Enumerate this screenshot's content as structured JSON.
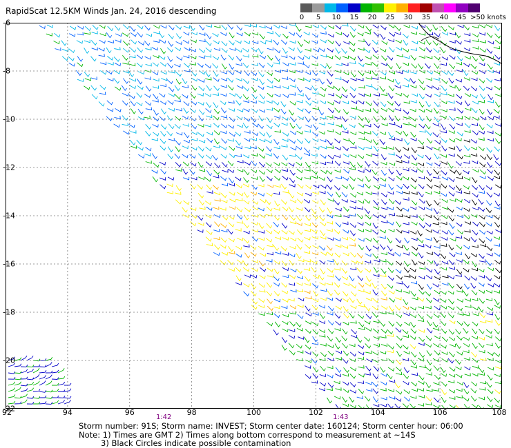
{
  "title": "RapidScat 12.5KM Winds Jan. 24, 2016 descending",
  "legend": {
    "labels": [
      "0",
      "5",
      "10",
      "15",
      "20",
      "25",
      "30",
      "35",
      "40",
      "45",
      ">50 knots"
    ],
    "colors": [
      "#5a5a5a",
      "#9a9a9a",
      "#00b8e8",
      "#0060ff",
      "#0000c8",
      "#00b400",
      "#30c000",
      "#fff000",
      "#ffb000",
      "#ff2020",
      "#a00000",
      "#c050b0",
      "#ff00ff",
      "#9000c0",
      "#500070"
    ]
  },
  "map": {
    "x_ticks": [
      "92",
      "94",
      "96",
      "98",
      "100",
      "102",
      "104",
      "106",
      "108"
    ],
    "y_ticks": [
      "-6",
      "-8",
      "-10",
      "-12",
      "-14",
      "-16",
      "-18",
      "-20",
      "-22"
    ],
    "pass_times": [
      {
        "label": "1:42",
        "lon": 97.1
      },
      {
        "label": "1:43",
        "lon": 102.8
      }
    ]
  },
  "footer": {
    "line1": "Storm number: 91S;  Storm name: INVEST;  Storm center date: 160124;  Storm center hour: 06:00",
    "line2": "Note: 1) Times are GMT  2) Times along bottom correspond to measurement at ~14S",
    "line3": "3) Black Circles indicate possible contamination"
  }
}
